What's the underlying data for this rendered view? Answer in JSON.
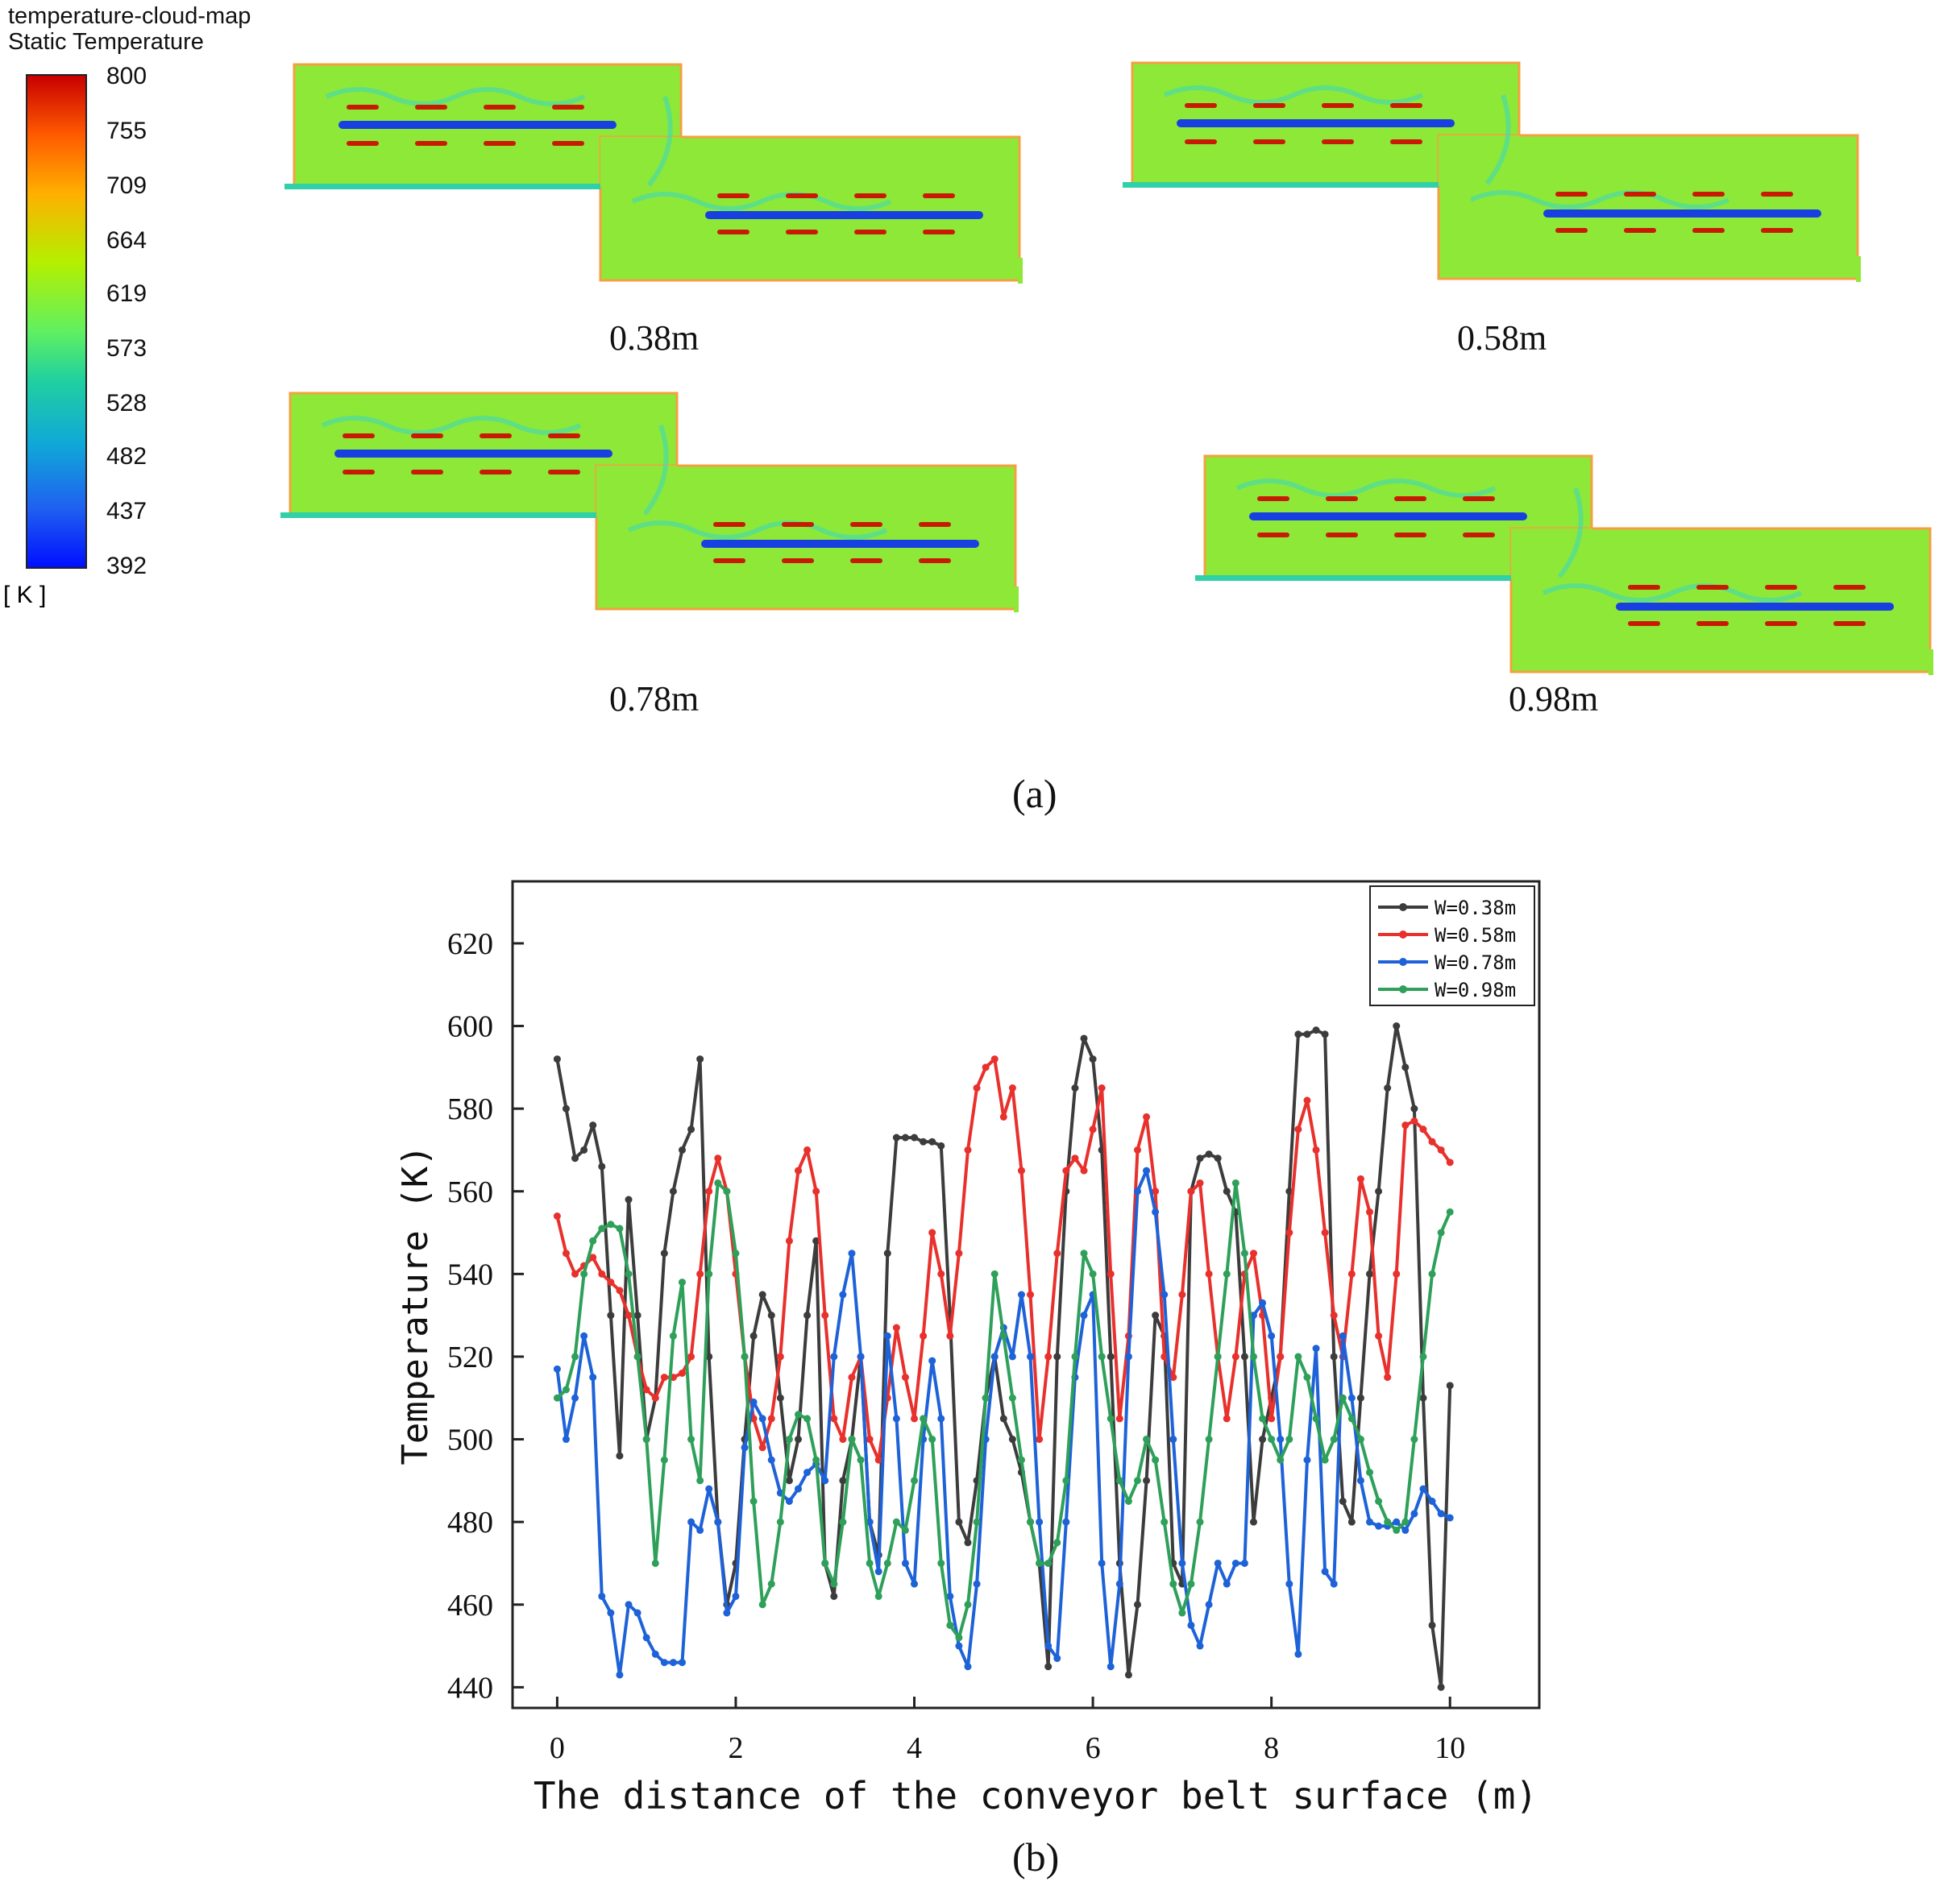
{
  "colorbar": {
    "title_line1": "temperature-cloud-map",
    "title_line2": "Static Temperature",
    "unit": "[ K ]",
    "ticks": [
      "800",
      "755",
      "709",
      "664",
      "619",
      "573",
      "528",
      "482",
      "437",
      "392"
    ]
  },
  "panel_a": {
    "labels": [
      "0.38m",
      "0.58m",
      "0.78m",
      "0.98m"
    ],
    "caption": "(a)"
  },
  "panel_b": {
    "caption": "(b)"
  },
  "colors": {
    "W038": "#3c3c3c",
    "W058": "#e8302c",
    "W078": "#1e62d8",
    "W098": "#2ea05a"
  },
  "chart_data": {
    "type": "line",
    "title": "",
    "xlabel": "The distance of the conveyor belt surface (m)",
    "ylabel": "Temperature (K)",
    "xlim": [
      -0.5,
      11
    ],
    "ylim": [
      435,
      635
    ],
    "xticks": [
      0,
      2,
      4,
      6,
      8,
      10
    ],
    "yticks": [
      440,
      460,
      480,
      500,
      520,
      540,
      560,
      580,
      600,
      620
    ],
    "legend_position": "top-right",
    "series": [
      {
        "name": "W=0.38m",
        "color": "#3c3c3c",
        "x": [
          0,
          0.1,
          0.2,
          0.3,
          0.4,
          0.5,
          0.6,
          0.7,
          0.8,
          0.9,
          1.0,
          1.1,
          1.2,
          1.3,
          1.4,
          1.5,
          1.6,
          1.7,
          1.8,
          1.9,
          2.0,
          2.1,
          2.2,
          2.3,
          2.4,
          2.5,
          2.6,
          2.7,
          2.8,
          2.9,
          3.0,
          3.1,
          3.2,
          3.3,
          3.4,
          3.5,
          3.6,
          3.7,
          3.8,
          3.9,
          4.0,
          4.1,
          4.2,
          4.3,
          4.4,
          4.5,
          4.6,
          4.7,
          4.8,
          4.9,
          5.0,
          5.1,
          5.2,
          5.3,
          5.4,
          5.5,
          5.6,
          5.7,
          5.8,
          5.9,
          6.0,
          6.1,
          6.2,
          6.3,
          6.4,
          6.5,
          6.6,
          6.7,
          6.8,
          6.9,
          7.0,
          7.1,
          7.2,
          7.3,
          7.4,
          7.5,
          7.6,
          7.7,
          7.8,
          7.9,
          8.0,
          8.1,
          8.2,
          8.3,
          8.4,
          8.5,
          8.6,
          8.7,
          8.8,
          8.9,
          9.0,
          9.1,
          9.2,
          9.3,
          9.4,
          9.5,
          9.6,
          9.7,
          9.8,
          9.9,
          10.0
        ],
        "values": [
          592,
          580,
          568,
          570,
          576,
          566,
          530,
          496,
          558,
          530,
          500,
          510,
          545,
          560,
          570,
          575,
          592,
          520,
          480,
          460,
          470,
          500,
          525,
          535,
          530,
          510,
          490,
          500,
          530,
          548,
          470,
          462,
          490,
          500,
          520,
          480,
          472,
          545,
          573,
          573,
          573,
          572,
          572,
          571,
          530,
          480,
          475,
          490,
          510,
          520,
          505,
          500,
          492,
          480,
          470,
          445,
          520,
          560,
          585,
          597,
          592,
          570,
          520,
          470,
          443,
          460,
          490,
          530,
          525,
          470,
          465,
          560,
          568,
          569,
          568,
          560,
          555,
          520,
          480,
          500,
          510,
          520,
          560,
          598,
          598,
          599,
          598,
          520,
          485,
          480,
          510,
          540,
          560,
          585,
          600,
          590,
          580,
          510,
          455,
          440,
          513
        ]
      },
      {
        "name": "W=0.58m",
        "color": "#e8302c",
        "x": [
          0,
          0.1,
          0.2,
          0.3,
          0.4,
          0.5,
          0.6,
          0.7,
          0.8,
          0.9,
          1.0,
          1.1,
          1.2,
          1.3,
          1.4,
          1.5,
          1.6,
          1.7,
          1.8,
          1.9,
          2.0,
          2.1,
          2.2,
          2.3,
          2.4,
          2.5,
          2.6,
          2.7,
          2.8,
          2.9,
          3.0,
          3.1,
          3.2,
          3.3,
          3.4,
          3.5,
          3.6,
          3.7,
          3.8,
          3.9,
          4.0,
          4.1,
          4.2,
          4.3,
          4.4,
          4.5,
          4.6,
          4.7,
          4.8,
          4.9,
          5.0,
          5.1,
          5.2,
          5.3,
          5.4,
          5.5,
          5.6,
          5.7,
          5.8,
          5.9,
          6.0,
          6.1,
          6.2,
          6.3,
          6.4,
          6.5,
          6.6,
          6.7,
          6.8,
          6.9,
          7.0,
          7.1,
          7.2,
          7.3,
          7.4,
          7.5,
          7.6,
          7.7,
          7.8,
          7.9,
          8.0,
          8.1,
          8.2,
          8.3,
          8.4,
          8.5,
          8.6,
          8.7,
          8.8,
          8.9,
          9.0,
          9.1,
          9.2,
          9.3,
          9.4,
          9.5,
          9.6,
          9.7,
          9.8,
          9.9,
          10.0
        ],
        "values": [
          554,
          545,
          540,
          542,
          544,
          540,
          538,
          536,
          530,
          520,
          512,
          510,
          515,
          515,
          516,
          520,
          540,
          560,
          568,
          560,
          540,
          520,
          505,
          498,
          505,
          520,
          548,
          565,
          570,
          560,
          530,
          505,
          500,
          515,
          520,
          500,
          495,
          510,
          527,
          515,
          505,
          525,
          550,
          540,
          525,
          545,
          570,
          585,
          590,
          592,
          578,
          585,
          565,
          535,
          500,
          520,
          545,
          565,
          568,
          565,
          575,
          585,
          540,
          505,
          525,
          570,
          578,
          560,
          520,
          515,
          535,
          560,
          562,
          540,
          520,
          505,
          520,
          540,
          545,
          530,
          505,
          520,
          550,
          575,
          582,
          570,
          550,
          530,
          520,
          540,
          563,
          555,
          525,
          515,
          540,
          576,
          577,
          575,
          572,
          570,
          567
        ]
      },
      {
        "name": "W=0.78m",
        "color": "#1e62d8",
        "x": [
          0,
          0.1,
          0.2,
          0.3,
          0.4,
          0.5,
          0.6,
          0.7,
          0.8,
          0.9,
          1.0,
          1.1,
          1.2,
          1.3,
          1.4,
          1.5,
          1.6,
          1.7,
          1.8,
          1.9,
          2.0,
          2.1,
          2.2,
          2.3,
          2.4,
          2.5,
          2.6,
          2.7,
          2.8,
          2.9,
          3.0,
          3.1,
          3.2,
          3.3,
          3.4,
          3.5,
          3.6,
          3.7,
          3.8,
          3.9,
          4.0,
          4.1,
          4.2,
          4.3,
          4.4,
          4.5,
          4.6,
          4.7,
          4.8,
          4.9,
          5.0,
          5.1,
          5.2,
          5.3,
          5.4,
          5.5,
          5.6,
          5.7,
          5.8,
          5.9,
          6.0,
          6.1,
          6.2,
          6.3,
          6.4,
          6.5,
          6.6,
          6.7,
          6.8,
          6.9,
          7.0,
          7.1,
          7.2,
          7.3,
          7.4,
          7.5,
          7.6,
          7.7,
          7.8,
          7.9,
          8.0,
          8.1,
          8.2,
          8.3,
          8.4,
          8.5,
          8.6,
          8.7,
          8.8,
          8.9,
          9.0,
          9.1,
          9.2,
          9.3,
          9.4,
          9.5,
          9.6,
          9.7,
          9.8,
          9.9,
          10.0
        ],
        "values": [
          517,
          500,
          510,
          525,
          515,
          462,
          458,
          443,
          460,
          458,
          452,
          448,
          446,
          446,
          446,
          480,
          478,
          488,
          480,
          458,
          462,
          498,
          509,
          505,
          495,
          487,
          485,
          488,
          492,
          494,
          490,
          520,
          535,
          545,
          520,
          480,
          468,
          525,
          505,
          470,
          465,
          500,
          519,
          505,
          462,
          450,
          445,
          465,
          500,
          520,
          527,
          520,
          535,
          520,
          480,
          450,
          447,
          480,
          515,
          530,
          535,
          470,
          445,
          465,
          520,
          560,
          565,
          555,
          535,
          500,
          470,
          455,
          450,
          460,
          470,
          465,
          470,
          470,
          530,
          533,
          525,
          500,
          465,
          448,
          495,
          522,
          468,
          465,
          525,
          510,
          490,
          480,
          479,
          479,
          480,
          478,
          482,
          488,
          485,
          482,
          481
        ]
      },
      {
        "name": "W=0.98m",
        "color": "#2ea05a",
        "x": [
          0,
          0.1,
          0.2,
          0.3,
          0.4,
          0.5,
          0.6,
          0.7,
          0.8,
          0.9,
          1.0,
          1.1,
          1.2,
          1.3,
          1.4,
          1.5,
          1.6,
          1.7,
          1.8,
          1.9,
          2.0,
          2.1,
          2.2,
          2.3,
          2.4,
          2.5,
          2.6,
          2.7,
          2.8,
          2.9,
          3.0,
          3.1,
          3.2,
          3.3,
          3.4,
          3.5,
          3.6,
          3.7,
          3.8,
          3.9,
          4.0,
          4.1,
          4.2,
          4.3,
          4.4,
          4.5,
          4.6,
          4.7,
          4.8,
          4.9,
          5.0,
          5.1,
          5.2,
          5.3,
          5.4,
          5.5,
          5.6,
          5.7,
          5.8,
          5.9,
          6.0,
          6.1,
          6.2,
          6.3,
          6.4,
          6.5,
          6.6,
          6.7,
          6.8,
          6.9,
          7.0,
          7.1,
          7.2,
          7.3,
          7.4,
          7.5,
          7.6,
          7.7,
          7.8,
          7.9,
          8.0,
          8.1,
          8.2,
          8.3,
          8.4,
          8.5,
          8.6,
          8.7,
          8.8,
          8.9,
          9.0,
          9.1,
          9.2,
          9.3,
          9.4,
          9.5,
          9.6,
          9.7,
          9.8,
          9.9,
          10.0
        ],
        "values": [
          510,
          512,
          520,
          540,
          548,
          551,
          552,
          551,
          540,
          520,
          500,
          470,
          495,
          525,
          538,
          500,
          490,
          540,
          562,
          560,
          545,
          520,
          485,
          460,
          465,
          480,
          500,
          506,
          505,
          495,
          470,
          465,
          480,
          500,
          495,
          470,
          462,
          470,
          480,
          478,
          490,
          505,
          500,
          470,
          455,
          452,
          460,
          480,
          510,
          540,
          525,
          510,
          495,
          480,
          470,
          470,
          475,
          490,
          520,
          545,
          540,
          520,
          505,
          490,
          485,
          490,
          500,
          495,
          480,
          465,
          458,
          465,
          480,
          500,
          520,
          540,
          562,
          545,
          520,
          505,
          500,
          495,
          500,
          520,
          515,
          505,
          495,
          500,
          510,
          505,
          500,
          492,
          485,
          480,
          478,
          480,
          500,
          520,
          540,
          550,
          555
        ]
      }
    ]
  }
}
